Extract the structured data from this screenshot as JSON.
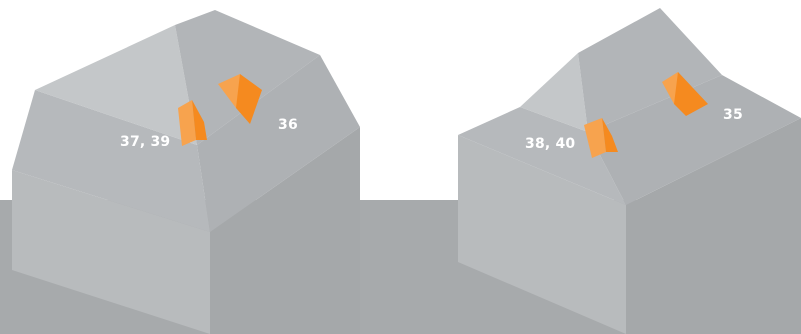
{
  "diagram": {
    "left_house": {
      "labels": {
        "corner": "37, 39",
        "ridge": "36"
      }
    },
    "right_house": {
      "labels": {
        "corner": "38, 40",
        "ridge": "35"
      }
    },
    "colors": {
      "ground": "#a7aaac",
      "accent": "#f58a1f",
      "accent_light": "#f7a34e",
      "roof_light": "#c4c7c9",
      "roof_mid": "#b7babd",
      "roof_dark": "#aeb1b4",
      "wall_light": "#b8bbbd",
      "wall_dark": "#a5a8aa"
    }
  }
}
